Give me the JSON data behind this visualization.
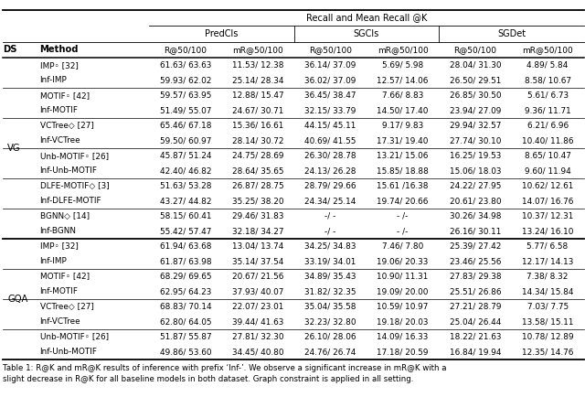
{
  "title": "Recall and Mean Recall @K",
  "col_groups": [
    "PredCls",
    "SGCls",
    "SGDet"
  ],
  "col_subheaders": [
    "R@50/100",
    "mR@50/100",
    "R@50/100",
    "mR@50/100",
    "R@50/100",
    "mR@50/100"
  ],
  "vg_rows": [
    [
      "IMP◦ [32]",
      "61.63/ 63.63",
      "11.53/ 12.38",
      "36.14/ 37.09",
      "5.69/ 5.98",
      "28.04/ 31.30",
      "4.89/ 5.84"
    ],
    [
      "Inf-IMP",
      "59.93/ 62.02",
      "25.14/ 28.34",
      "36.02/ 37.09",
      "12.57/ 14.06",
      "26.50/ 29.51",
      "8.58/ 10.67"
    ],
    [
      "MOTIF◦ [42]",
      "59.57/ 63.95",
      "12.88/ 15.47",
      "36.45/ 38.47",
      "7.66/ 8.83",
      "26.85/ 30.50",
      "5.61/ 6.73"
    ],
    [
      "Inf-MOTIF",
      "51.49/ 55.07",
      "24.67/ 30.71",
      "32.15/ 33.79",
      "14.50/ 17.40",
      "23.94/ 27.09",
      "9.36/ 11.71"
    ],
    [
      "VCTree◇ [27]",
      "65.46/ 67.18",
      "15.36/ 16.61",
      "44.15/ 45.11",
      "9.17/ 9.83",
      "29.94/ 32.57",
      "6.21/ 6.96"
    ],
    [
      "Inf-VCTree",
      "59.50/ 60.97",
      "28.14/ 30.72",
      "40.69/ 41.55",
      "17.31/ 19.40",
      "27.74/ 30.10",
      "10.40/ 11.86"
    ],
    [
      "Unb-MOTIF◦ [26]",
      "45.87/ 51.24",
      "24.75/ 28.69",
      "26.30/ 28.78",
      "13.21/ 15.06",
      "16.25/ 19.53",
      "8.65/ 10.47"
    ],
    [
      "Inf-Unb-MOTIF",
      "42.40/ 46.82",
      "28.64/ 35.65",
      "24.13/ 26.28",
      "15.85/ 18.88",
      "15.06/ 18.03",
      "9.60/ 11.94"
    ],
    [
      "DLFE-MOTIF◇ [3]",
      "51.63/ 53.28",
      "26.87/ 28.75",
      "28.79/ 29.66",
      "15.61 /16.38",
      "24.22/ 27.95",
      "10.62/ 12.61"
    ],
    [
      "Inf-DLFE-MOTIF",
      "43.27/ 44.82",
      "35.25/ 38.20",
      "24.34/ 25.14",
      "19.74/ 20.66",
      "20.61/ 23.80",
      "14.07/ 16.76"
    ],
    [
      "BGNN◇ [14]",
      "58.15/ 60.41",
      "29.46/ 31.83",
      "-/ -",
      "- /-",
      "30.26/ 34.98",
      "10.37/ 12.31"
    ],
    [
      "Inf-BGNN",
      "55.42/ 57.47",
      "32.18/ 34.27",
      "-/ -",
      "- /-",
      "26.16/ 30.11",
      "13.24/ 16.10"
    ]
  ],
  "gqa_rows": [
    [
      "IMP◦ [32]",
      "61.94/ 63.68",
      "13.04/ 13.74",
      "34.25/ 34.83",
      "7.46/ 7.80",
      "25.39/ 27.42",
      "5.77/ 6.58"
    ],
    [
      "Inf-IMP",
      "61.87/ 63.98",
      "35.14/ 37.54",
      "33.19/ 34.01",
      "19.06/ 20.33",
      "23.46/ 25.56",
      "12.17/ 14.13"
    ],
    [
      "MOTIF◦ [42]",
      "68.29/ 69.65",
      "20.67/ 21.56",
      "34.89/ 35.43",
      "10.90/ 11.31",
      "27.83/ 29.38",
      "7.38/ 8.32"
    ],
    [
      "Inf-MOTIF",
      "62.95/ 64.23",
      "37.93/ 40.07",
      "31.82/ 32.35",
      "19.09/ 20.00",
      "25.51/ 26.86",
      "14.34/ 15.84"
    ],
    [
      "VCTree◇ [27]",
      "68.83/ 70.14",
      "22.07/ 23.01",
      "35.04/ 35.58",
      "10.59/ 10.97",
      "27.21/ 28.79",
      "7.03/ 7.75"
    ],
    [
      "Inf-VCTree",
      "62.80/ 64.05",
      "39.44/ 41.63",
      "32.23/ 32.80",
      "19.18/ 20.03",
      "25.04/ 26.44",
      "13.58/ 15.11"
    ],
    [
      "Unb-MOTIF◦ [26]",
      "51.87/ 55.87",
      "27.81/ 32.30",
      "26.10/ 28.06",
      "14.09/ 16.33",
      "18.22/ 21.63",
      "10.78/ 12.89"
    ],
    [
      "Inf-Unb-MOTIF",
      "49.86/ 53.60",
      "34.45/ 40.80",
      "24.76/ 26.74",
      "17.18/ 20.59",
      "16.84/ 19.94",
      "12.35/ 14.76"
    ]
  ],
  "caption_line1": "Table 1: R@K and mR@K results of inference with prefix ‘Inf-’. We observe a significant increase in mR@K with a",
  "caption_line2": "slight decrease in R@K for all baseline models in both dataset. Graph constraint is applied in all setting.",
  "bg_color": "#ffffff",
  "text_color": "#000000"
}
